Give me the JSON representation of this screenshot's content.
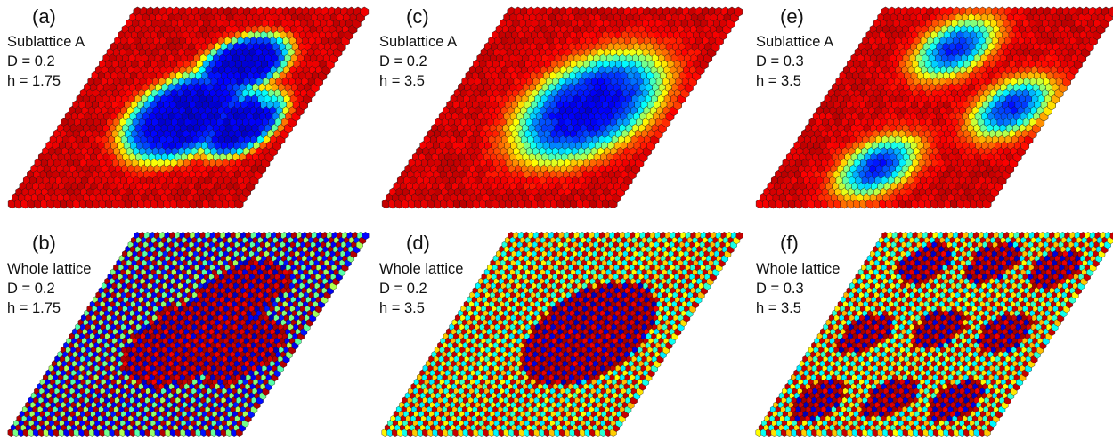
{
  "colormap": "jet",
  "panels": [
    {
      "id": "a",
      "label": "(a)",
      "lines": [
        "Sublattice A",
        "D = 0.2",
        "h = 1.75"
      ],
      "pattern": "single-blob",
      "description_of_field": "dark red background, blue kidney-shaped domain"
    },
    {
      "id": "c",
      "label": "(c)",
      "lines": [
        "Sublattice A",
        "D = 0.2",
        "h = 3.5"
      ],
      "pattern": "single-disk"
    },
    {
      "id": "e",
      "label": "(e)",
      "lines": [
        "Sublattice A",
        "D = 0.3",
        "h = 3.5"
      ],
      "pattern": "three-disks"
    },
    {
      "id": "b",
      "label": "(b)",
      "lines": [
        "Whole lattice",
        "D = 0.2",
        "h = 1.75"
      ],
      "pattern": "whole-blob"
    },
    {
      "id": "d",
      "label": "(d)",
      "lines": [
        "Whole lattice",
        "D = 0.2",
        "h = 3.5"
      ],
      "pattern": "whole-disk"
    },
    {
      "id": "f",
      "label": "(f)",
      "lines": [
        "Whole lattice",
        "D = 0.3",
        "h = 3.5"
      ],
      "pattern": "whole-many"
    }
  ]
}
